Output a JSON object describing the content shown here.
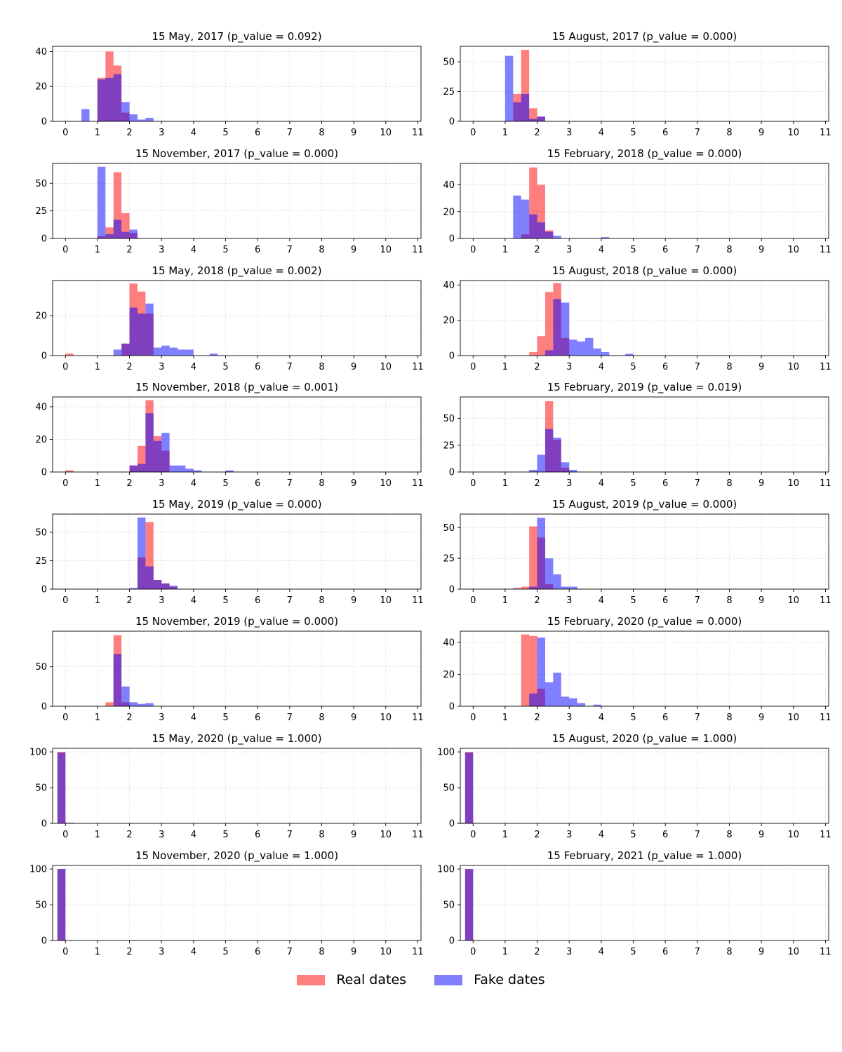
{
  "chart_data": {
    "type": "bar",
    "layout": "histogram-grid",
    "xlim": [
      -0.4,
      11.1
    ],
    "xticks": [
      0,
      1,
      2,
      3,
      4,
      5,
      6,
      7,
      8,
      9,
      10,
      11
    ],
    "grid": true,
    "legend": {
      "position": "bottom-center",
      "entries": [
        {
          "label": "Real dates",
          "color": "#ff7f7f"
        },
        {
          "label": "Fake dates",
          "color": "#7f7fff"
        }
      ]
    },
    "series_colors": {
      "real": "#ff0000",
      "fake": "#0000ff",
      "overlap": "#7f3fbf"
    },
    "series_alpha": 0.5,
    "panels": [
      {
        "title": "15 May, 2017 (p_value = 0.092)",
        "ylim": [
          0,
          43
        ],
        "yticks": [
          0,
          20,
          40
        ],
        "real": [
          [
            1.0,
            25
          ],
          [
            1.25,
            40
          ],
          [
            1.5,
            32
          ],
          [
            1.75,
            5
          ]
        ],
        "fake": [
          [
            0.5,
            7
          ],
          [
            1.0,
            24
          ],
          [
            1.25,
            25
          ],
          [
            1.5,
            27
          ],
          [
            1.75,
            11
          ],
          [
            2.0,
            4
          ],
          [
            2.25,
            1
          ],
          [
            2.5,
            2
          ]
        ]
      },
      {
        "title": "15 August, 2017 (p_value = 0.000)",
        "ylim": [
          0,
          63
        ],
        "yticks": [
          0,
          25,
          50
        ],
        "real": [
          [
            1.25,
            23
          ],
          [
            1.5,
            60
          ],
          [
            1.75,
            11
          ],
          [
            2.0,
            4
          ]
        ],
        "fake": [
          [
            1.0,
            55
          ],
          [
            1.25,
            16
          ],
          [
            1.5,
            23
          ],
          [
            1.75,
            2
          ],
          [
            2.0,
            4
          ]
        ]
      },
      {
        "title": "15 November, 2017 (p_value = 0.000)",
        "ylim": [
          0,
          68
        ],
        "yticks": [
          0,
          25,
          50
        ],
        "real": [
          [
            1.0,
            2
          ],
          [
            1.25,
            10
          ],
          [
            1.5,
            60
          ],
          [
            1.75,
            23
          ],
          [
            2.0,
            5
          ]
        ],
        "fake": [
          [
            1.0,
            65
          ],
          [
            1.25,
            4
          ],
          [
            1.5,
            17
          ],
          [
            1.75,
            6
          ],
          [
            2.0,
            8
          ]
        ]
      },
      {
        "title": "15 February, 2018 (p_value = 0.000)",
        "ylim": [
          0,
          56
        ],
        "yticks": [
          0,
          20,
          40
        ],
        "real": [
          [
            1.5,
            3
          ],
          [
            1.75,
            53
          ],
          [
            2.0,
            40
          ],
          [
            2.25,
            6
          ]
        ],
        "fake": [
          [
            1.25,
            32
          ],
          [
            1.5,
            29
          ],
          [
            1.75,
            18
          ],
          [
            2.0,
            12
          ],
          [
            2.25,
            5
          ],
          [
            2.5,
            2
          ],
          [
            4.0,
            1
          ]
        ]
      },
      {
        "title": "15 May, 2018 (p_value = 0.002)",
        "ylim": [
          0,
          37.5
        ],
        "yticks": [
          0,
          20
        ],
        "real": [
          [
            0.0,
            1
          ],
          [
            1.75,
            6
          ],
          [
            2.0,
            36
          ],
          [
            2.25,
            32
          ],
          [
            2.5,
            21
          ]
        ],
        "fake": [
          [
            1.5,
            3
          ],
          [
            1.75,
            6
          ],
          [
            2.0,
            24
          ],
          [
            2.25,
            21
          ],
          [
            2.5,
            26
          ],
          [
            2.75,
            4
          ],
          [
            3.0,
            5
          ],
          [
            3.25,
            4
          ],
          [
            3.5,
            3
          ],
          [
            3.75,
            3
          ],
          [
            4.5,
            1
          ]
        ]
      },
      {
        "title": "15 August, 2018 (p_value = 0.000)",
        "ylim": [
          0,
          42.5
        ],
        "yticks": [
          0,
          20,
          40
        ],
        "real": [
          [
            1.75,
            2
          ],
          [
            2.0,
            11
          ],
          [
            2.25,
            36
          ],
          [
            2.5,
            41
          ],
          [
            2.75,
            10
          ]
        ],
        "fake": [
          [
            2.25,
            3
          ],
          [
            2.5,
            32
          ],
          [
            2.75,
            30
          ],
          [
            3.0,
            9
          ],
          [
            3.25,
            8
          ],
          [
            3.5,
            10
          ],
          [
            3.75,
            4
          ],
          [
            4.0,
            2
          ],
          [
            4.75,
            1
          ]
        ]
      },
      {
        "title": "15 November, 2018 (p_value = 0.001)",
        "ylim": [
          0,
          46
        ],
        "yticks": [
          0,
          20,
          40
        ],
        "real": [
          [
            0.0,
            1
          ],
          [
            2.0,
            4
          ],
          [
            2.25,
            16
          ],
          [
            2.5,
            44
          ],
          [
            2.75,
            22
          ],
          [
            3.0,
            13
          ]
        ],
        "fake": [
          [
            2.0,
            4
          ],
          [
            2.25,
            5
          ],
          [
            2.5,
            36
          ],
          [
            2.75,
            19
          ],
          [
            3.0,
            24
          ],
          [
            3.25,
            4
          ],
          [
            3.5,
            4
          ],
          [
            3.75,
            2
          ],
          [
            4.0,
            1
          ],
          [
            5.0,
            1
          ]
        ]
      },
      {
        "title": "15 February, 2019 (p_value = 0.019)",
        "ylim": [
          0,
          70
        ],
        "yticks": [
          0,
          25,
          50
        ],
        "real": [
          [
            2.25,
            66
          ],
          [
            2.5,
            30
          ],
          [
            2.75,
            4
          ]
        ],
        "fake": [
          [
            1.75,
            2
          ],
          [
            2.0,
            16
          ],
          [
            2.25,
            40
          ],
          [
            2.5,
            32
          ],
          [
            2.75,
            9
          ],
          [
            3.0,
            2
          ]
        ]
      },
      {
        "title": "15 May, 2019 (p_value = 0.000)",
        "ylim": [
          0,
          66
        ],
        "yticks": [
          0,
          25,
          50
        ],
        "real": [
          [
            2.25,
            28
          ],
          [
            2.5,
            59
          ],
          [
            2.75,
            8
          ],
          [
            3.0,
            5
          ],
          [
            3.25,
            2
          ]
        ],
        "fake": [
          [
            2.0,
            1
          ],
          [
            2.25,
            63
          ],
          [
            2.5,
            20
          ],
          [
            2.75,
            8
          ],
          [
            3.0,
            5
          ],
          [
            3.25,
            3
          ]
        ]
      },
      {
        "title": "15 August, 2019 (p_value = 0.000)",
        "ylim": [
          0,
          61
        ],
        "yticks": [
          0,
          25,
          50
        ],
        "real": [
          [
            1.25,
            1
          ],
          [
            1.5,
            2
          ],
          [
            1.75,
            51
          ],
          [
            2.0,
            42
          ],
          [
            2.25,
            4
          ]
        ],
        "fake": [
          [
            1.75,
            2
          ],
          [
            2.0,
            58
          ],
          [
            2.25,
            25
          ],
          [
            2.5,
            12
          ],
          [
            2.75,
            2
          ],
          [
            3.0,
            2
          ]
        ]
      },
      {
        "title": "15 November, 2019 (p_value = 0.000)",
        "ylim": [
          0,
          95
        ],
        "yticks": [
          0,
          50
        ],
        "real": [
          [
            1.25,
            5
          ],
          [
            1.5,
            90
          ],
          [
            1.75,
            5
          ]
        ],
        "fake": [
          [
            1.5,
            66
          ],
          [
            1.75,
            25
          ],
          [
            2.0,
            5
          ],
          [
            2.25,
            3
          ],
          [
            2.5,
            4
          ]
        ]
      },
      {
        "title": "15 February, 2020 (p_value = 0.000)",
        "ylim": [
          0,
          47
        ],
        "yticks": [
          0,
          20,
          40
        ],
        "real": [
          [
            1.5,
            45
          ],
          [
            1.75,
            44
          ],
          [
            2.0,
            11
          ]
        ],
        "fake": [
          [
            1.75,
            8
          ],
          [
            2.0,
            43
          ],
          [
            2.25,
            15
          ],
          [
            2.5,
            21
          ],
          [
            2.75,
            6
          ],
          [
            3.0,
            5
          ],
          [
            3.25,
            2
          ],
          [
            3.75,
            1
          ]
        ]
      },
      {
        "title": "15 May, 2020 (p_value = 1.000)",
        "ylim": [
          0,
          105
        ],
        "yticks": [
          0,
          50,
          100
        ],
        "real": [
          [
            -0.25,
            100
          ]
        ],
        "fake": [
          [
            -0.25,
            99
          ],
          [
            0.0,
            1
          ]
        ]
      },
      {
        "title": "15 August, 2020 (p_value = 1.000)",
        "ylim": [
          0,
          105
        ],
        "yticks": [
          0,
          50,
          100
        ],
        "real": [
          [
            -0.25,
            100
          ]
        ],
        "fake": [
          [
            -0.5,
            1
          ],
          [
            -0.25,
            99
          ]
        ]
      },
      {
        "title": "15 November, 2020 (p_value = 1.000)",
        "ylim": [
          0,
          105
        ],
        "yticks": [
          0,
          50,
          100
        ],
        "real": [
          [
            -0.25,
            100
          ]
        ],
        "fake": [
          [
            -0.25,
            100
          ]
        ]
      },
      {
        "title": "15 February, 2021 (p_value = 1.000)",
        "ylim": [
          0,
          105
        ],
        "yticks": [
          0,
          50,
          100
        ],
        "real": [
          [
            -0.25,
            100
          ]
        ],
        "fake": [
          [
            -0.25,
            100
          ]
        ]
      }
    ]
  }
}
